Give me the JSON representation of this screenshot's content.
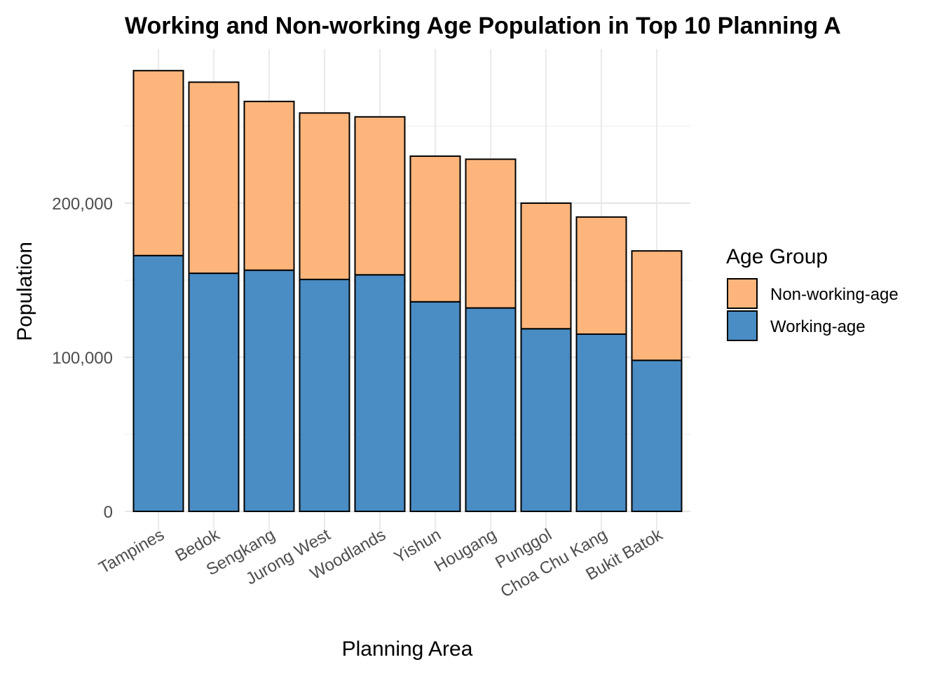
{
  "chart_data": {
    "type": "bar",
    "stacked": true,
    "title": "Working and Non-working Age Population in Top 10 Planning A",
    "xlabel": "Planning Area",
    "ylabel": "Population",
    "categories": [
      "Tampines",
      "Bedok",
      "Sengkang",
      "Jurong West",
      "Woodlands",
      "Yishun",
      "Hougang",
      "Punggol",
      "Choa Chu Kang",
      "Bukit Batok"
    ],
    "series": [
      {
        "name": "Working-age",
        "color": "#4a8cc4",
        "values": [
          166000,
          154500,
          156500,
          150500,
          153500,
          136000,
          132000,
          118500,
          115000,
          98000
        ]
      },
      {
        "name": "Non-working-age",
        "color": "#fdb57c",
        "values": [
          120000,
          124000,
          109500,
          108000,
          102500,
          94500,
          96500,
          81500,
          76000,
          71000
        ]
      }
    ],
    "ylim": [
      0,
      286000
    ],
    "y_ticks": [
      0,
      100000,
      200000
    ],
    "y_tick_labels": [
      "0",
      "100,000",
      "200,000"
    ],
    "grid": true,
    "legend": {
      "title": "Age Group",
      "placement": "right",
      "entries": [
        "Non-working-age",
        "Working-age"
      ]
    }
  }
}
